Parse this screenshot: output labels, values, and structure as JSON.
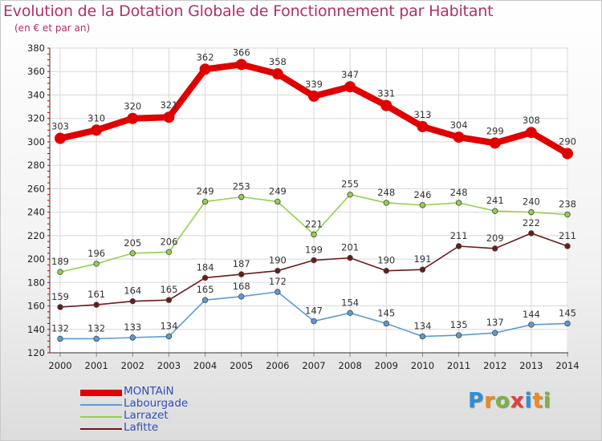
{
  "title": "Evolution de la Dotation Globale de Fonctionnement par Habitant",
  "subtitle": "(en € et par an)",
  "brand": {
    "letters": [
      "P",
      "r",
      "o",
      "x",
      "i",
      "t",
      "i"
    ],
    "colors": [
      "#2e8fd6",
      "#f08a1c",
      "#7cb342",
      "#e0403a",
      "#2e8fd6",
      "#f08a1c",
      "#7cb342"
    ]
  },
  "chart_data": {
    "type": "line",
    "title": "Evolution de la Dotation Globale de Fonctionnement par Habitant",
    "subtitle": "(en € et par an)",
    "xlabel": "",
    "ylabel": "",
    "x": [
      "2000",
      "2001",
      "2002",
      "2003",
      "2004",
      "2005",
      "2006",
      "2007",
      "2008",
      "2009",
      "2010",
      "2011",
      "2012",
      "2013",
      "2014"
    ],
    "ylim": [
      120,
      380
    ],
    "yticks": [
      120,
      140,
      160,
      180,
      200,
      220,
      240,
      260,
      280,
      300,
      320,
      340,
      360,
      380
    ],
    "grid": true,
    "legend": "bottom-left",
    "series": [
      {
        "name": "MONTAiN",
        "color": "#e00000",
        "highlight": true,
        "values": [
          303,
          310,
          320,
          321,
          362,
          366,
          358,
          339,
          347,
          331,
          313,
          304,
          299,
          308,
          290
        ]
      },
      {
        "name": "Labourgade",
        "color": "#5b9bd5",
        "values": [
          132,
          132,
          133,
          134,
          165,
          168,
          172,
          147,
          154,
          145,
          134,
          135,
          137,
          144,
          145
        ]
      },
      {
        "name": "Larrazet",
        "color": "#92d050",
        "values": [
          189,
          196,
          205,
          206,
          249,
          253,
          249,
          221,
          255,
          248,
          246,
          248,
          241,
          240,
          238
        ]
      },
      {
        "name": "Lafitte",
        "color": "#6b1a1a",
        "values": [
          159,
          161,
          164,
          165,
          184,
          187,
          190,
          199,
          201,
          190,
          191,
          211,
          209,
          222,
          211
        ]
      }
    ]
  }
}
